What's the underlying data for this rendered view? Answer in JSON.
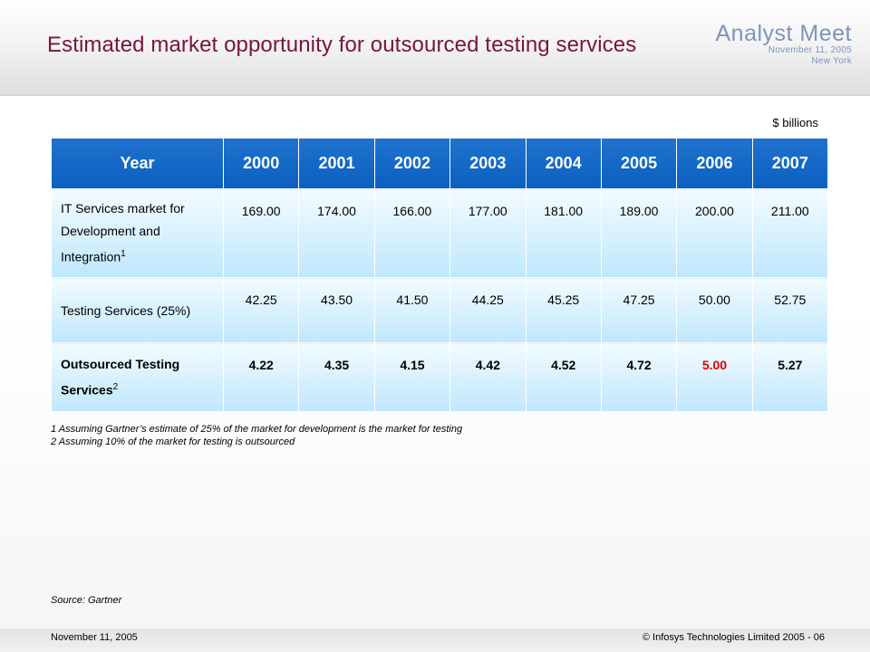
{
  "header": {
    "title": "Estimated market opportunity for outsourced testing services",
    "brand_name": "Analyst Meet",
    "brand_date": "November 11, 2005",
    "brand_city": "New York"
  },
  "unit_label": "$ billions",
  "table": {
    "columns": [
      "Year",
      "2000",
      "2001",
      "2002",
      "2003",
      "2004",
      "2005",
      "2006",
      "2007"
    ],
    "rows": [
      {
        "label": "IT Services market for Development and Integration",
        "footnote": "1",
        "values": [
          "169.00",
          "174.00",
          "166.00",
          "177.00",
          "181.00",
          "189.00",
          "200.00",
          "211.00"
        ]
      },
      {
        "label": "Testing Services (25%)",
        "footnote": "",
        "values": [
          "42.25",
          "43.50",
          "41.50",
          "44.25",
          "45.25",
          "47.25",
          "50.00",
          "52.75"
        ]
      },
      {
        "label": "Outsourced Testing Services",
        "footnote": "2",
        "values": [
          "4.22",
          "4.35",
          "4.15",
          "4.42",
          "4.52",
          "4.72",
          "5.00",
          "5.27"
        ],
        "highlight_year": "2006",
        "highlight_color": "#e00000"
      }
    ]
  },
  "notes": [
    "1 Assuming Gartner’s estimate of 25% of the market for development  is the market for testing",
    "2 Assuming 10% of the market for testing is outsourced"
  ],
  "source": "Source: Gartner",
  "footer": {
    "date": "November 11, 2005",
    "copyright": "© Infosys Technologies Limited 2005 - 06"
  },
  "colors": {
    "title": "#7a1340",
    "brand": "#7d93bb",
    "header_cell": "#0b5fc0",
    "body_cell": "#bfe7fd",
    "highlight": "#e00000"
  }
}
